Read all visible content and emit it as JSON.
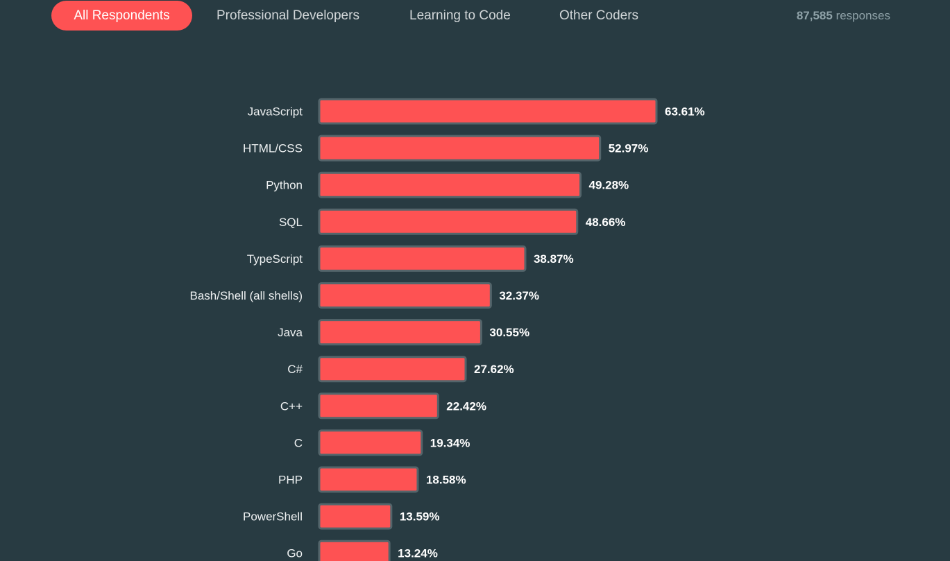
{
  "tabs": [
    {
      "label": "All Respondents",
      "active": true
    },
    {
      "label": "Professional Developers",
      "active": false
    },
    {
      "label": "Learning to Code",
      "active": false
    },
    {
      "label": "Other Coders",
      "active": false
    }
  ],
  "responses": {
    "count": "87,585",
    "label": "responses"
  },
  "colors": {
    "background": "#283b42",
    "accent": "#fe5253",
    "bar_border": "#54656b"
  },
  "chart_data": {
    "type": "bar",
    "orientation": "horizontal",
    "title": "",
    "xlabel": "",
    "ylabel": "",
    "grid": false,
    "xlim": [
      0,
      63.61
    ],
    "categories": [
      "JavaScript",
      "HTML/CSS",
      "Python",
      "SQL",
      "TypeScript",
      "Bash/Shell (all shells)",
      "Java",
      "C#",
      "C++",
      "C",
      "PHP",
      "PowerShell",
      "Go"
    ],
    "values": [
      63.61,
      52.97,
      49.28,
      48.66,
      38.87,
      32.37,
      30.55,
      27.62,
      22.42,
      19.34,
      18.58,
      13.59,
      13.24
    ],
    "value_labels": [
      "63.61%",
      "52.97%",
      "49.28%",
      "48.66%",
      "38.87%",
      "32.37%",
      "30.55%",
      "27.62%",
      "22.42%",
      "19.34%",
      "18.58%",
      "13.59%",
      "13.24%"
    ]
  }
}
